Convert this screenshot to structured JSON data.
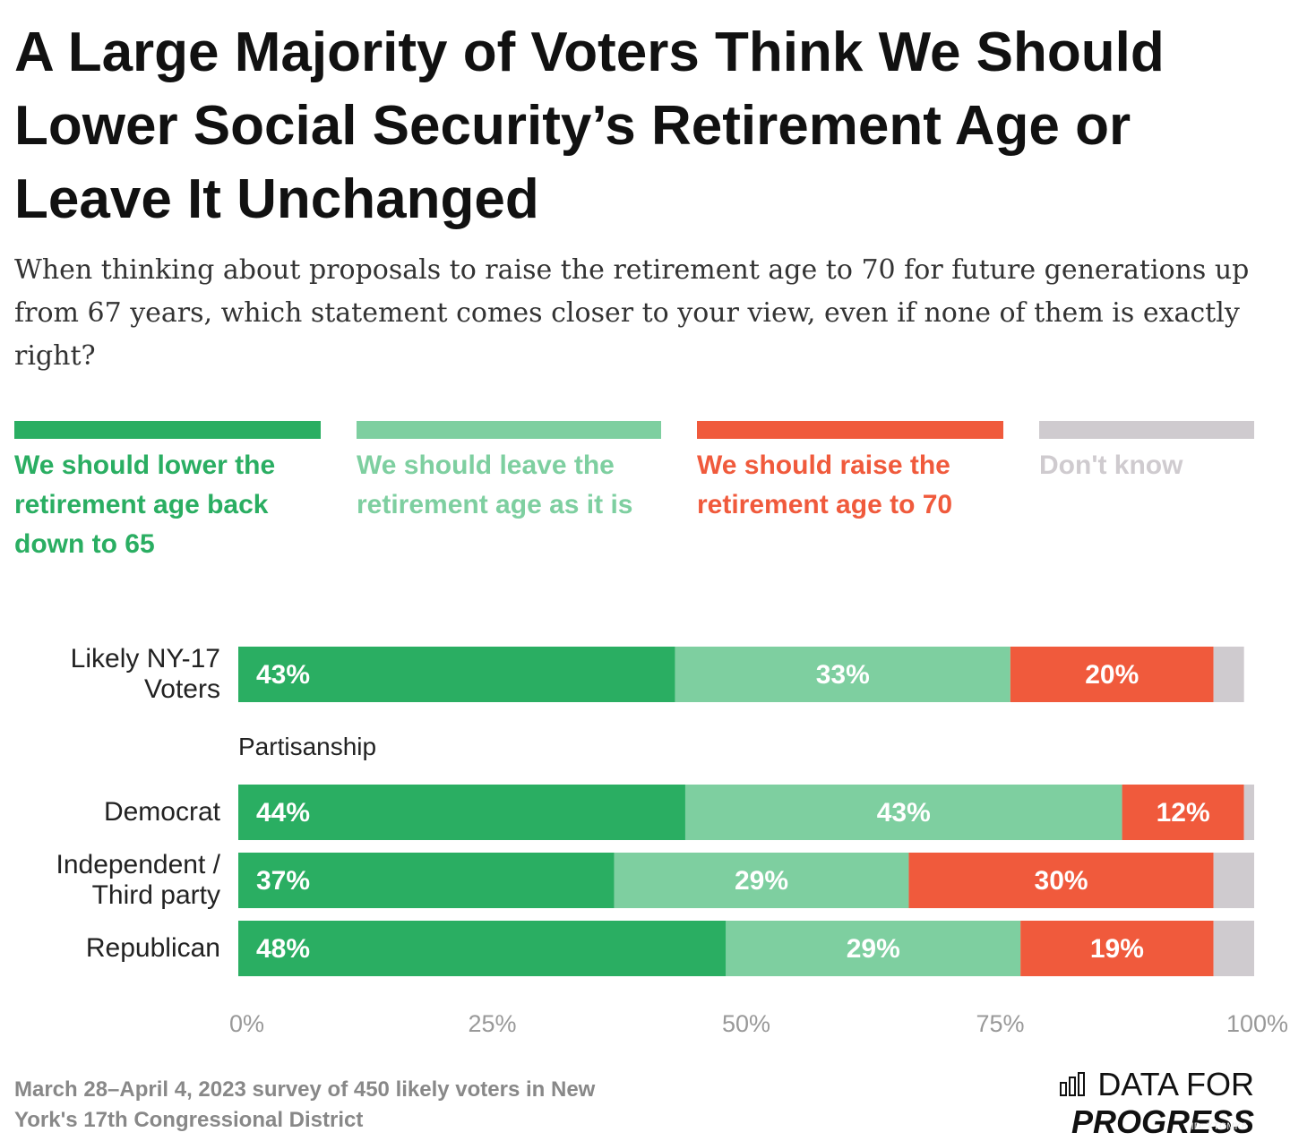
{
  "chart_data": {
    "type": "stacked-bar-horizontal",
    "title": "A Large Majority of Voters Think We Should Lower Social Security’s Retirement Age or Leave It Unchanged",
    "subtitle": "When thinking about proposals to raise the retirement age to 70 for future generations up from 67 years, which statement comes closer to your view, even if none of them is exactly right?",
    "categories": [
      "Likely NY-17 Voters",
      "Democrat",
      "Independent / Third party",
      "Republican"
    ],
    "group_label": "Partisanship",
    "series": [
      {
        "name": "We should lower the retirement age back down to 65",
        "color": "#2aae62",
        "values": [
          43,
          44,
          37,
          48
        ],
        "value_labels": [
          "43%",
          "44%",
          "37%",
          "48%"
        ]
      },
      {
        "name": "We should leave the retirement age as it is",
        "color": "#7ecfa0",
        "values": [
          33,
          43,
          29,
          29
        ],
        "value_labels": [
          "33%",
          "43%",
          "29%",
          "29%"
        ]
      },
      {
        "name": "We should raise the retirement age to 70",
        "color": "#f05a3c",
        "values": [
          20,
          12,
          30,
          19
        ],
        "value_labels": [
          "20%",
          "12%",
          "30%",
          "19%"
        ]
      },
      {
        "name": "Don't know",
        "color": "#cfcbcf",
        "values": [
          3,
          2,
          4,
          5
        ]
      }
    ],
    "xlim": [
      0,
      100
    ],
    "xticks": [
      {
        "value": 0,
        "label": "0%"
      },
      {
        "value": 25,
        "label": "25%"
      },
      {
        "value": 50,
        "label": "50%"
      },
      {
        "value": 75,
        "label": "75%"
      },
      {
        "value": 100,
        "label": "100%"
      }
    ],
    "note": "March 28–April 4, 2023 survey of 450 likely voters in New York's 17th Congressional District",
    "logo": {
      "light": "DATA FOR",
      "bold": "PROGRESS"
    },
    "id_label": "ID: XTGMK8"
  }
}
